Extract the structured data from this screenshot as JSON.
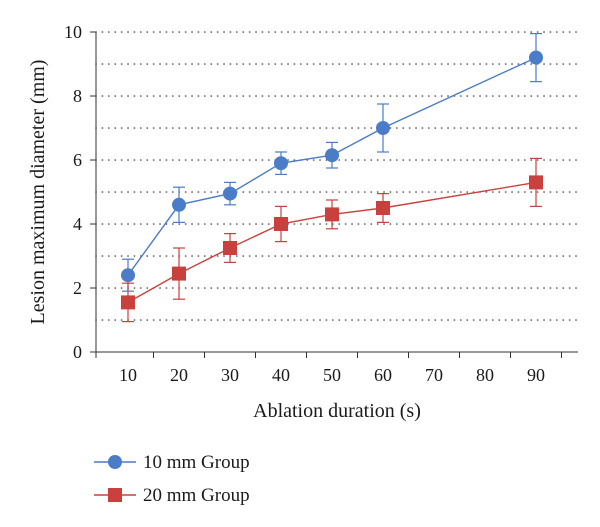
{
  "chart_data": {
    "type": "line",
    "title": "",
    "xlabel": "Ablation duration (s)",
    "ylabel": "Lesion maximum diameter (mm)",
    "x_ticks": [
      "10",
      "20",
      "30",
      "40",
      "50",
      "60",
      "70",
      "80",
      "90"
    ],
    "ylim": [
      0,
      10
    ],
    "y_ticks": [
      "0",
      "2",
      "4",
      "6",
      "8",
      "10"
    ],
    "grid": "horizontal dotted",
    "legend_position": "bottom-left",
    "series": [
      {
        "name": "10 mm Group",
        "color": "#4a7cc7",
        "marker": "circle",
        "x": [
          10,
          20,
          30,
          40,
          50,
          60,
          90
        ],
        "y": [
          2.4,
          4.6,
          4.95,
          5.9,
          6.15,
          7.0,
          9.2
        ],
        "error": [
          0.5,
          0.55,
          0.35,
          0.35,
          0.4,
          0.75,
          0.75
        ]
      },
      {
        "name": "20 mm Group",
        "color": "#c9413c",
        "marker": "square",
        "x": [
          10,
          20,
          30,
          40,
          50,
          60,
          90
        ],
        "y": [
          1.55,
          2.45,
          3.25,
          4.0,
          4.3,
          4.5,
          5.3
        ],
        "error": [
          0.6,
          0.8,
          0.45,
          0.55,
          0.45,
          0.45,
          0.75
        ]
      }
    ]
  }
}
